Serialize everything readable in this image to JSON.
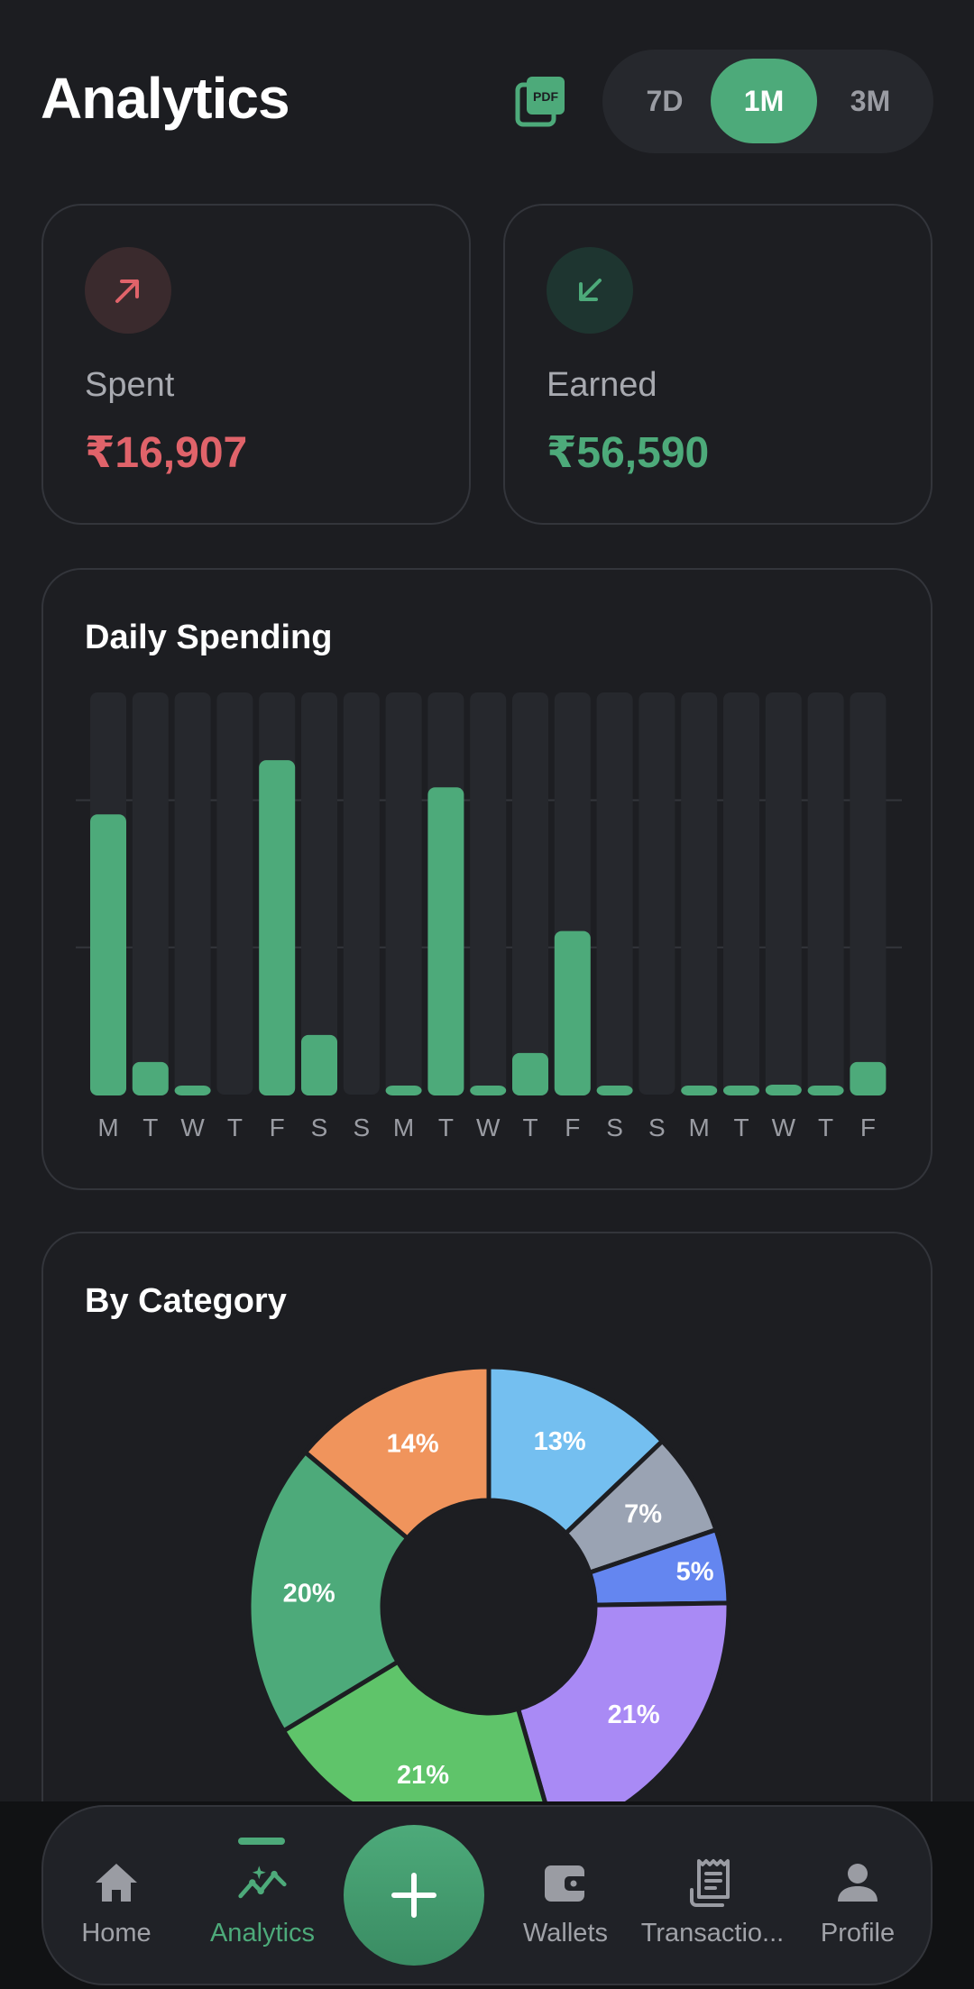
{
  "header": {
    "title": "Analytics",
    "pdf_icon": "pdf-export-icon",
    "ranges": [
      "7D",
      "1M",
      "3M"
    ],
    "active_range": "1M"
  },
  "summary": {
    "spent": {
      "label": "Spent",
      "value": "₹16,907",
      "color": "#e0636a",
      "icon": "arrow-up-right-icon"
    },
    "earned": {
      "label": "Earned",
      "value": "₹56,590",
      "color": "#4daa7a",
      "icon": "arrow-down-left-icon"
    }
  },
  "daily": {
    "title": "Daily Spending",
    "chart_data": {
      "type": "bar",
      "categories": [
        "M",
        "T",
        "W",
        "T",
        "F",
        "S",
        "S",
        "M",
        "T",
        "W",
        "T",
        "F",
        "S",
        "S",
        "M",
        "T",
        "W",
        "T",
        "F"
      ],
      "values": [
        3100,
        360,
        100,
        0,
        3700,
        660,
        0,
        100,
        3400,
        100,
        460,
        1810,
        100,
        0,
        100,
        100,
        110,
        100,
        360
      ],
      "ylim": [
        0,
        4450
      ],
      "grid": true,
      "bar_color": "#4daa7a",
      "track_color": "#26282d"
    }
  },
  "category": {
    "title": "By Category",
    "chart_data": {
      "type": "pie",
      "values": [
        13,
        7,
        5,
        21,
        21,
        20,
        14
      ],
      "labels": [
        "13%",
        "7%",
        "5%",
        "21%",
        "21%",
        "20%",
        "14%"
      ],
      "colors": [
        "#74bff0",
        "#9aa3b3",
        "#6486f0",
        "#a98af5",
        "#5fc46a",
        "#4daa7a",
        "#f0945c"
      ]
    }
  },
  "nav": {
    "items": [
      {
        "label": "Home",
        "icon": "home-icon"
      },
      {
        "label": "Analytics",
        "icon": "analytics-icon"
      },
      {
        "label": "Wallets",
        "icon": "wallet-icon"
      },
      {
        "label": "Transactio...",
        "icon": "receipt-icon"
      },
      {
        "label": "Profile",
        "icon": "profile-icon"
      }
    ],
    "active": "Analytics",
    "fab_icon": "plus-icon"
  }
}
